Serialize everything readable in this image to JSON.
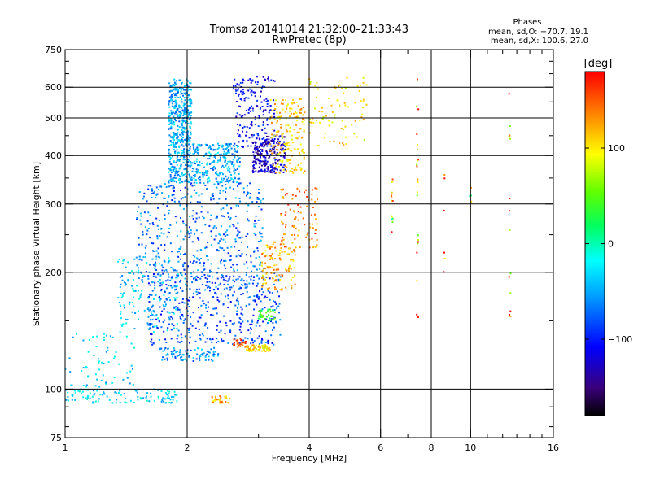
{
  "chart_data": {
    "type": "scatter",
    "title": "Tromsø 20141014 21:32:00–21:33:43",
    "subtitle": "RwPretec (8p)",
    "xlabel": "Frequency [MHz]",
    "ylabel": "Stationary phase Virtual Height [km]",
    "x_scale": "log",
    "y_scale": "log",
    "xlim": [
      1,
      16
    ],
    "ylim": [
      75,
      750
    ],
    "x_ticks": [
      1,
      2,
      4,
      6,
      8,
      10,
      16
    ],
    "x_tick_labels": [
      "1",
      "2",
      "4",
      "6",
      "8",
      "10",
      "16"
    ],
    "y_ticks": [
      75,
      100,
      200,
      300,
      400,
      500,
      600,
      750
    ],
    "y_tick_labels": [
      "75",
      "100",
      "200",
      "300",
      "400",
      "500",
      "600",
      "750"
    ],
    "grid": true,
    "phase_box": {
      "heading": "Phases",
      "line_o": "mean, sd,O: −70.7, 19.1",
      "line_x": "mean, sd,X: 100.6, 27.0"
    },
    "colorbar": {
      "label": "[deg]",
      "range": [
        -180,
        180
      ],
      "ticks": [
        100,
        0,
        -100
      ],
      "tick_labels": [
        "100",
        "0",
        "−100"
      ]
    },
    "clusters": [
      {
        "f": [
          1.8,
          2.05
        ],
        "h": [
          340,
          630
        ],
        "phase": -50,
        "n": 520
      },
      {
        "f": [
          2.05,
          2.7
        ],
        "h": [
          340,
          430
        ],
        "phase": -50,
        "n": 260
      },
      {
        "f": [
          1.5,
          3.1
        ],
        "h": [
          180,
          340
        ],
        "phase": -70,
        "n": 520
      },
      {
        "f": [
          1.6,
          3.4
        ],
        "h": [
          130,
          200
        ],
        "phase": -85,
        "n": 420
      },
      {
        "f": [
          1.35,
          1.9
        ],
        "h": [
          140,
          220
        ],
        "phase": -35,
        "n": 150
      },
      {
        "f": [
          1.0,
          1.5
        ],
        "h": [
          95,
          140
        ],
        "phase": -35,
        "n": 70
      },
      {
        "f": [
          1.0,
          1.9
        ],
        "h": [
          92,
          100
        ],
        "phase": -30,
        "n": 110
      },
      {
        "f": [
          1.7,
          2.4
        ],
        "h": [
          118,
          128
        ],
        "phase": -60,
        "n": 90
      },
      {
        "f": [
          2.9,
          3.5
        ],
        "h": [
          360,
          450
        ],
        "phase": -125,
        "n": 230
      },
      {
        "f": [
          2.6,
          3.3
        ],
        "h": [
          420,
          640
        ],
        "phase": -110,
        "n": 170
      },
      {
        "f": [
          3.2,
          3.9
        ],
        "h": [
          360,
          560
        ],
        "phase": 110,
        "n": 180
      },
      {
        "f": [
          3.4,
          4.2
        ],
        "h": [
          230,
          330
        ],
        "phase": 140,
        "n": 90
      },
      {
        "f": [
          3.05,
          3.7
        ],
        "h": [
          180,
          240
        ],
        "phase": 120,
        "n": 120
      },
      {
        "f": [
          2.8,
          3.2
        ],
        "h": [
          125,
          130
        ],
        "phase": 105,
        "n": 60
      },
      {
        "f": [
          2.6,
          2.8
        ],
        "h": [
          128,
          135
        ],
        "phase": 150,
        "n": 25
      },
      {
        "f": [
          3.0,
          3.3
        ],
        "h": [
          150,
          162
        ],
        "phase": 40,
        "n": 35
      },
      {
        "f": [
          2.3,
          2.55
        ],
        "h": [
          92,
          96
        ],
        "phase": 120,
        "n": 35
      },
      {
        "f": [
          4.0,
          5.6
        ],
        "h": [
          420,
          640
        ],
        "phase": 100,
        "n": 80
      }
    ],
    "sparse_points": [
      {
        "f": 6.4,
        "h": [
          250,
          350
        ],
        "phase": 90,
        "n": 14
      },
      {
        "f": 7.4,
        "h": [
          150,
          650
        ],
        "phase": 140,
        "n": 22
      },
      {
        "f": 12.5,
        "h": [
          150,
          650
        ],
        "phase": 150,
        "n": 14
      },
      {
        "f": 10.0,
        "h": [
          270,
          350
        ],
        "phase": 60,
        "n": 5
      },
      {
        "f": 8.6,
        "h": [
          200,
          390
        ],
        "phase": 160,
        "n": 6
      }
    ]
  }
}
